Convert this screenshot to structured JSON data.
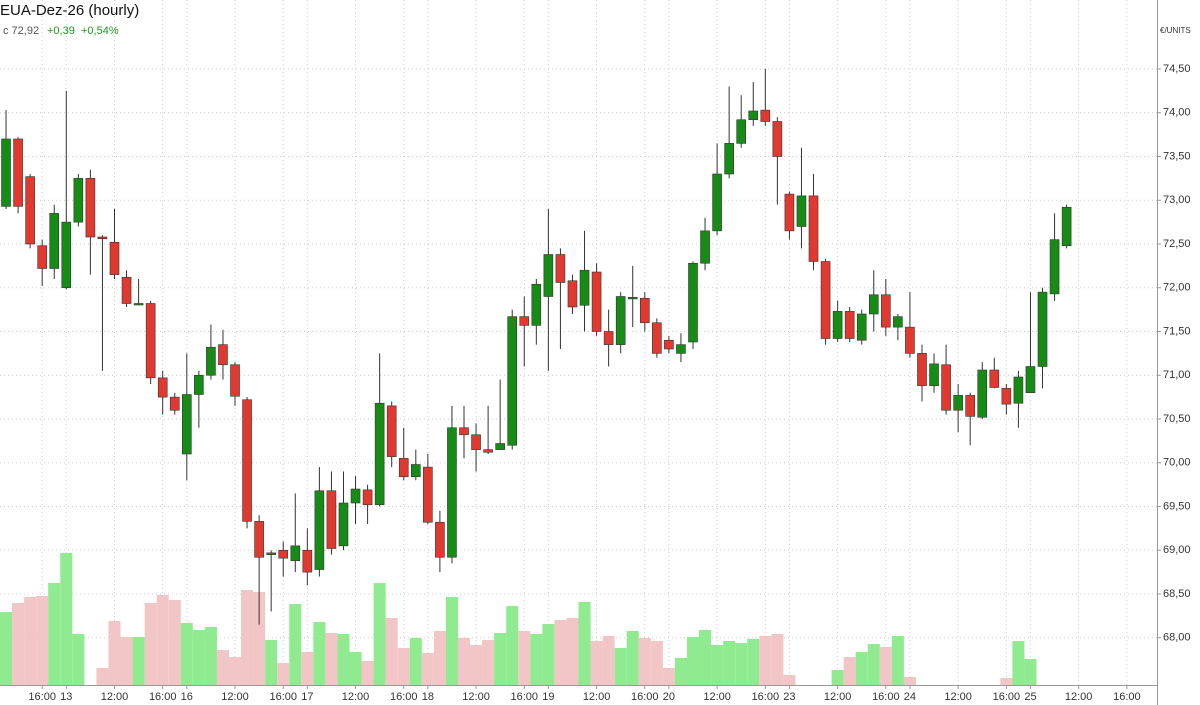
{
  "chart_data": {
    "type": "candlestick",
    "title": "EUA-Dez-26 (hourly)",
    "summary": {
      "close": "c 72,92",
      "change": "+0,39",
      "change_pct": "+0,54%"
    },
    "y_unit": "€/UNITS",
    "x": [
      0,
      1,
      2,
      3,
      4,
      5,
      6,
      7,
      8,
      9,
      10,
      11,
      12,
      13,
      14,
      15,
      16,
      17,
      18,
      19,
      20,
      21,
      22,
      23,
      24,
      25,
      26,
      27,
      28,
      29,
      30,
      31,
      32,
      33,
      34,
      35,
      36,
      37,
      38,
      39,
      40,
      41,
      42,
      43,
      44,
      45,
      46,
      47,
      48,
      49,
      50,
      51,
      52,
      53,
      54,
      55,
      56,
      57,
      58,
      59,
      60,
      61,
      62,
      63,
      64,
      65,
      66,
      67,
      68,
      69,
      70,
      71,
      72,
      73,
      74,
      75,
      76,
      77,
      78,
      79,
      80,
      81,
      82,
      83,
      84,
      85,
      86,
      87,
      88
    ],
    "open": [
      72.93,
      73.7,
      73.27,
      72.48,
      72.22,
      72.0,
      72.75,
      73.25,
      72.58,
      72.52,
      72.12,
      71.82,
      71.82,
      70.97,
      70.75,
      70.1,
      70.78,
      71.0,
      71.35,
      71.12,
      70.72,
      69.33,
      68.95,
      69.0,
      68.88,
      69.0,
      68.78,
      69.68,
      69.05,
      69.54,
      69.69,
      69.52,
      70.65,
      70.05,
      69.84,
      69.95,
      69.32,
      68.92,
      70.4,
      70.32,
      70.15,
      70.15,
      70.2,
      71.67,
      71.57,
      71.9,
      72.38,
      72.08,
      71.8,
      72.18,
      71.5,
      71.35,
      71.88,
      71.88,
      71.6,
      71.4,
      71.25,
      71.38,
      72.28,
      72.65,
      73.3,
      73.65,
      73.92,
      74.03,
      73.9,
      73.07,
      72.7,
      73.05,
      72.3,
      71.42,
      71.73,
      71.4,
      71.7,
      71.92,
      71.55,
      71.55,
      71.25,
      70.88,
      71.12,
      70.6,
      70.77,
      70.52,
      71.06,
      70.85,
      70.68,
      70.8,
      71.1,
      71.93,
      72.48
    ],
    "high": [
      74.03,
      73.72,
      73.3,
      72.55,
      72.95,
      74.25,
      73.3,
      73.35,
      72.6,
      72.9,
      72.2,
      72.1,
      71.85,
      71.05,
      70.8,
      71.25,
      71.05,
      71.58,
      71.52,
      71.15,
      70.75,
      69.4,
      69.0,
      69.1,
      69.65,
      69.25,
      69.95,
      69.9,
      69.9,
      69.85,
      69.75,
      71.25,
      70.7,
      70.4,
      70.15,
      70.1,
      69.45,
      70.65,
      70.65,
      70.45,
      70.65,
      70.95,
      71.75,
      71.9,
      72.1,
      72.9,
      72.45,
      72.15,
      72.65,
      72.28,
      71.75,
      71.95,
      72.25,
      71.95,
      71.65,
      71.45,
      71.48,
      72.3,
      72.8,
      73.65,
      74.3,
      74.2,
      74.35,
      74.5,
      73.95,
      73.1,
      73.6,
      73.3,
      72.33,
      71.85,
      71.78,
      71.75,
      72.2,
      72.1,
      71.7,
      71.95,
      71.35,
      71.25,
      71.35,
      70.9,
      70.8,
      71.15,
      71.2,
      70.9,
      71.05,
      71.95,
      72.0,
      72.85,
      72.95
    ],
    "low": [
      72.9,
      72.85,
      72.45,
      72.02,
      72.1,
      71.98,
      72.7,
      72.15,
      71.05,
      72.1,
      71.78,
      71.8,
      70.9,
      70.55,
      70.55,
      69.8,
      70.4,
      70.95,
      70.95,
      70.65,
      69.25,
      68.15,
      68.3,
      68.7,
      68.75,
      68.6,
      68.7,
      68.95,
      69.0,
      69.3,
      69.3,
      69.5,
      69.95,
      69.8,
      69.8,
      69.3,
      68.75,
      68.85,
      70.05,
      69.9,
      70.1,
      70.15,
      70.15,
      71.1,
      71.35,
      71.05,
      71.3,
      71.7,
      71.5,
      71.45,
      71.1,
      71.25,
      71.55,
      71.5,
      71.2,
      71.25,
      71.15,
      71.3,
      72.2,
      72.6,
      73.25,
      73.6,
      73.85,
      73.85,
      72.95,
      72.55,
      72.45,
      72.2,
      71.35,
      71.38,
      71.38,
      71.35,
      71.5,
      71.45,
      71.4,
      71.2,
      70.7,
      70.8,
      70.55,
      70.35,
      70.2,
      70.5,
      70.85,
      70.55,
      70.4,
      70.8,
      70.85,
      71.85,
      72.45
    ],
    "close": [
      73.7,
      72.93,
      72.5,
      72.22,
      72.85,
      72.75,
      73.25,
      72.58,
      72.56,
      72.15,
      71.82,
      71.82,
      70.97,
      70.75,
      70.6,
      70.78,
      71.0,
      71.32,
      71.12,
      70.76,
      69.33,
      68.92,
      68.97,
      68.91,
      69.05,
      68.75,
      69.68,
      69.02,
      69.54,
      69.7,
      69.52,
      70.68,
      70.07,
      69.84,
      69.98,
      69.32,
      68.92,
      70.4,
      70.32,
      70.15,
      70.12,
      70.22,
      71.67,
      71.57,
      72.04,
      72.38,
      72.06,
      71.78,
      72.2,
      71.5,
      71.35,
      71.9,
      71.89,
      71.6,
      71.25,
      71.3,
      71.35,
      72.28,
      72.65,
      73.3,
      73.65,
      73.92,
      74.02,
      73.9,
      73.5,
      72.65,
      73.05,
      72.3,
      71.42,
      71.73,
      71.42,
      71.7,
      71.92,
      71.55,
      71.67,
      71.25,
      70.88,
      71.13,
      70.6,
      70.77,
      70.53,
      71.06,
      70.86,
      70.67,
      70.98,
      71.1,
      71.95,
      72.55,
      72.92
    ],
    "volume": [
      73,
      82,
      88,
      89,
      102,
      132,
      51,
      0,
      17,
      64,
      48,
      48,
      82,
      90,
      85,
      62,
      55,
      58,
      35,
      28,
      95,
      93,
      45,
      22,
      81,
      33,
      63,
      52,
      51,
      33,
      24,
      102,
      67,
      37,
      47,
      32,
      54,
      88,
      47,
      40,
      45,
      52,
      79,
      54,
      51,
      61,
      65,
      67,
      83,
      44,
      49,
      37,
      54,
      47,
      44,
      17,
      27,
      48,
      55,
      40,
      44,
      42,
      46,
      49,
      51,
      10,
      0,
      0,
      0,
      15,
      28,
      33,
      41,
      38,
      49,
      8,
      0,
      0,
      0,
      0,
      0,
      0,
      0,
      7,
      44,
      26,
      0,
      0,
      0
    ],
    "vlim": [
      0,
      150
    ],
    "xlim": [
      -0.5,
      95.5
    ],
    "xticks": [
      {
        "value": 3,
        "label": "16:00"
      },
      {
        "value": 5,
        "label": "13"
      },
      {
        "value": 9,
        "label": "12:00"
      },
      {
        "value": 13,
        "label": "16:00"
      },
      {
        "value": 15,
        "label": "16"
      },
      {
        "value": 19,
        "label": "12:00"
      },
      {
        "value": 23,
        "label": "16:00"
      },
      {
        "value": 25,
        "label": "17"
      },
      {
        "value": 29,
        "label": "12:00"
      },
      {
        "value": 33,
        "label": "16:00"
      },
      {
        "value": 35,
        "label": "18"
      },
      {
        "value": 39,
        "label": "12:00"
      },
      {
        "value": 43,
        "label": "16:00"
      },
      {
        "value": 45,
        "label": "19"
      },
      {
        "value": 49,
        "label": "12:00"
      },
      {
        "value": 53,
        "label": "16:00"
      },
      {
        "value": 55,
        "label": "20"
      },
      {
        "value": 59,
        "label": "12:00"
      },
      {
        "value": 63,
        "label": "16:00"
      },
      {
        "value": 65,
        "label": "23"
      },
      {
        "value": 69,
        "label": "12:00"
      },
      {
        "value": 73,
        "label": "16:00"
      },
      {
        "value": 75,
        "label": "24"
      },
      {
        "value": 79,
        "label": "12:00"
      },
      {
        "value": 83,
        "label": "16:00"
      },
      {
        "value": 85,
        "label": "25"
      },
      {
        "value": 89,
        "label": "12:00"
      },
      {
        "value": 93,
        "label": "16:00"
      }
    ],
    "ylim": [
      67.46,
      75.06
    ],
    "yticks": [
      {
        "value": 68,
        "label": "68,00"
      },
      {
        "value": 68.5,
        "label": "68,50"
      },
      {
        "value": 69,
        "label": "69,00"
      },
      {
        "value": 69.5,
        "label": "69,50"
      },
      {
        "value": 70,
        "label": "70,00"
      },
      {
        "value": 70.5,
        "label": "70,50"
      },
      {
        "value": 71,
        "label": "71,00"
      },
      {
        "value": 71.5,
        "label": "71,50"
      },
      {
        "value": 72,
        "label": "72,00"
      },
      {
        "value": 72.5,
        "label": "72,50"
      },
      {
        "value": 73,
        "label": "73,00"
      },
      {
        "value": 73.5,
        "label": "73,50"
      },
      {
        "value": 74,
        "label": "74,00"
      },
      {
        "value": 74.5,
        "label": "74,50"
      }
    ],
    "up_color": "#168c16",
    "down_color": "#e0392f",
    "volume_up_color": "#90ea90",
    "volume_down_color": "#f2c6c6",
    "grid": true
  }
}
